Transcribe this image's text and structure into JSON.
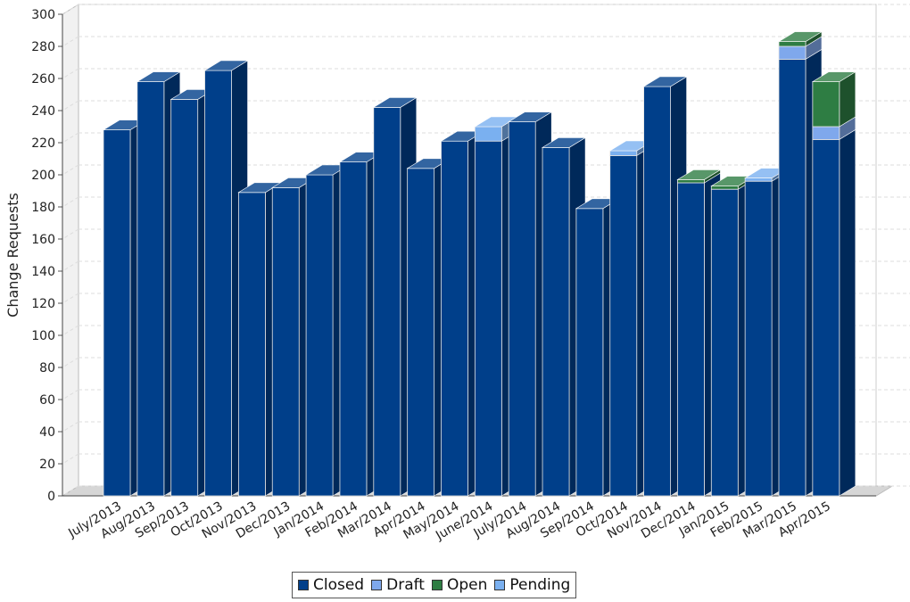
{
  "chart_data": {
    "type": "bar",
    "stacked": true,
    "three_d": true,
    "ylabel": "Change Requests",
    "xlabel": "",
    "ylim": [
      0,
      300
    ],
    "ytick_step": 20,
    "grid": true,
    "legend_position": "bottom",
    "categories": [
      "July/2013",
      "Aug/2013",
      "Sep/2013",
      "Oct/2013",
      "Nov/2013",
      "Dec/2013",
      "Jan/2014",
      "Feb/2014",
      "Mar/2014",
      "Apr/2014",
      "May/2014",
      "June/2014",
      "July/2014",
      "Aug/2014",
      "Sep/2014",
      "Oct/2014",
      "Nov/2014",
      "Dec/2014",
      "Jan/2015",
      "Feb/2015",
      "Mar/2015",
      "Apr/2015"
    ],
    "series": [
      {
        "name": "Closed",
        "color": "#003f8a",
        "values": [
          228,
          258,
          247,
          265,
          189,
          192,
          200,
          208,
          242,
          204,
          221,
          221,
          233,
          217,
          179,
          212,
          255,
          195,
          191,
          196,
          272,
          222
        ]
      },
      {
        "name": "Draft",
        "color": "#7fa8ec",
        "values": [
          0,
          0,
          0,
          0,
          0,
          0,
          0,
          0,
          0,
          0,
          0,
          0,
          0,
          0,
          0,
          0,
          0,
          0,
          0,
          0,
          8,
          8
        ]
      },
      {
        "name": "Open",
        "color": "#2e7d43",
        "values": [
          0,
          0,
          0,
          0,
          0,
          0,
          0,
          0,
          0,
          0,
          0,
          0,
          0,
          0,
          0,
          0,
          0,
          2,
          2,
          0,
          3,
          28
        ]
      },
      {
        "name": "Pending",
        "color": "#7ab0f0",
        "values": [
          0,
          0,
          0,
          0,
          0,
          0,
          0,
          0,
          0,
          0,
          0,
          9,
          0,
          0,
          0,
          3,
          0,
          0,
          0,
          2,
          0,
          0
        ]
      }
    ]
  }
}
